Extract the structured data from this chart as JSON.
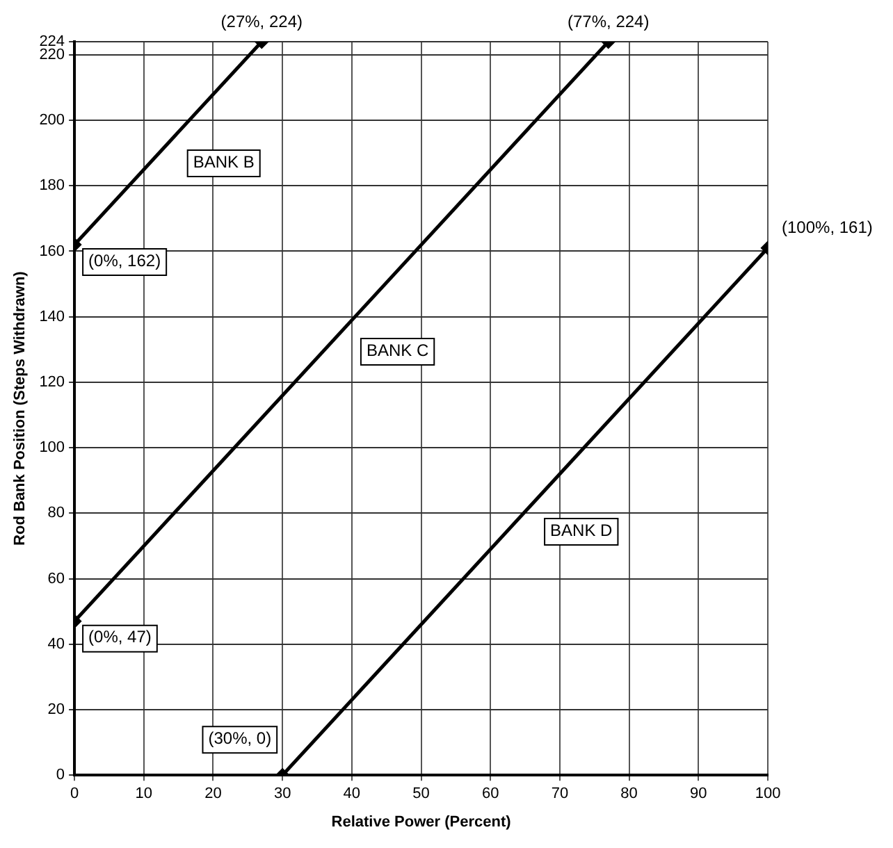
{
  "chart_data": {
    "type": "line",
    "xlabel": "Relative Power (Percent)",
    "ylabel": "Rod Bank Position (Steps Withdrawn)",
    "xlim": [
      0,
      100
    ],
    "xticks": [
      0,
      10,
      20,
      30,
      40,
      50,
      60,
      70,
      80,
      90,
      100
    ],
    "ylim": [
      0,
      224
    ],
    "yticks": [
      0,
      20,
      40,
      60,
      80,
      100,
      120,
      140,
      160,
      180,
      200,
      220,
      224
    ],
    "grid": true,
    "legend": false,
    "marker": "diamond",
    "line_style": "solid",
    "series": [
      {
        "name": "BANK B",
        "color": "#000000",
        "x": [
          0,
          27
        ],
        "values": [
          162,
          224
        ]
      },
      {
        "name": "BANK C",
        "color": "#000000",
        "x": [
          0,
          77
        ],
        "values": [
          47,
          224
        ]
      },
      {
        "name": "BANK D",
        "color": "#000000",
        "x": [
          30,
          100
        ],
        "values": [
          0,
          161
        ]
      }
    ],
    "annotations": [
      {
        "text": "(27%, 224)",
        "x": 27,
        "y": 224
      },
      {
        "text": "(77%, 224)",
        "x": 77,
        "y": 224
      },
      {
        "text": "(0%, 162)",
        "x": 0,
        "y": 162
      },
      {
        "text": "(100%, 161)",
        "x": 100,
        "y": 161
      },
      {
        "text": "(0%, 47)",
        "x": 0,
        "y": 47
      },
      {
        "text": "(30%, 0)",
        "x": 30,
        "y": 0
      }
    ]
  }
}
